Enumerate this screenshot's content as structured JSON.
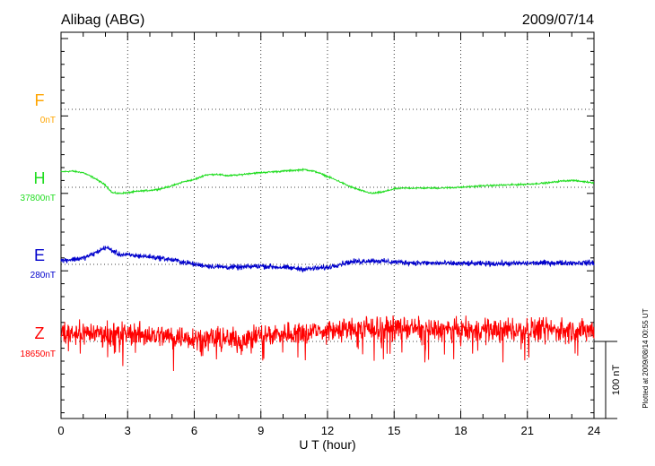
{
  "chart_data": {
    "type": "line",
    "title": "Alibag (ABG)",
    "date": "2009/07/14",
    "xlabel": "U T (hour)",
    "x_ticks": [
      "0",
      "3",
      "6",
      "9",
      "12",
      "15",
      "18",
      "21",
      "24"
    ],
    "xlim": [
      0,
      24
    ],
    "scale_bar_label": "100 nT",
    "plotted_note": "Plotted at 2009/08/14 00:55 UT",
    "series": [
      {
        "name": "F",
        "baseline_label": "0nT",
        "color": "#ffa500",
        "noise": 0,
        "values": []
      },
      {
        "name": "H",
        "baseline_label": "37800nT",
        "color": "#22dd22",
        "noise": 1.5,
        "hours": [
          0,
          0.5,
          1,
          1.5,
          2,
          2.3,
          2.6,
          3,
          3.5,
          4,
          4.5,
          5,
          5.5,
          6,
          6.5,
          7,
          7.5,
          8,
          8.5,
          9,
          9.5,
          10,
          10.5,
          11,
          11.5,
          12,
          12.5,
          13,
          13.5,
          14,
          14.5,
          15,
          15.5,
          16,
          17,
          18,
          19,
          20,
          21,
          22,
          22.5,
          23,
          24
        ],
        "values": [
          20,
          21,
          19,
          12,
          3,
          -7,
          -8,
          -7,
          -5,
          -4,
          -2,
          2,
          7,
          10,
          16,
          17,
          15,
          16,
          18,
          19,
          20,
          21,
          22,
          23,
          20,
          14,
          8,
          1,
          -4,
          -8,
          -6,
          -2,
          -1,
          -1,
          -1,
          0,
          2,
          3,
          4,
          6,
          8,
          9,
          6
        ]
      },
      {
        "name": "E",
        "baseline_label": "280nT",
        "color": "#0000cc",
        "noise": 5,
        "hours": [
          0,
          1,
          1.5,
          2,
          2.3,
          2.6,
          3,
          4,
          5,
          6,
          7,
          8,
          9,
          10,
          11,
          12,
          12.5,
          13,
          14,
          15,
          16,
          18,
          20,
          22,
          24
        ],
        "values": [
          5,
          8,
          14,
          22,
          18,
          13,
          12,
          10,
          6,
          0,
          -3,
          -4,
          -2,
          -4,
          -6,
          -4,
          0,
          3,
          5,
          3,
          2,
          1,
          1,
          2,
          2
        ]
      },
      {
        "name": "Z",
        "baseline_label": "18650nT",
        "color": "#ff0000",
        "noise": 22,
        "hours": [
          0,
          3,
          6,
          8,
          9,
          12,
          15,
          18,
          21,
          24
        ],
        "values": [
          12,
          10,
          5,
          2,
          8,
          15,
          18,
          14,
          16,
          14
        ]
      }
    ]
  }
}
